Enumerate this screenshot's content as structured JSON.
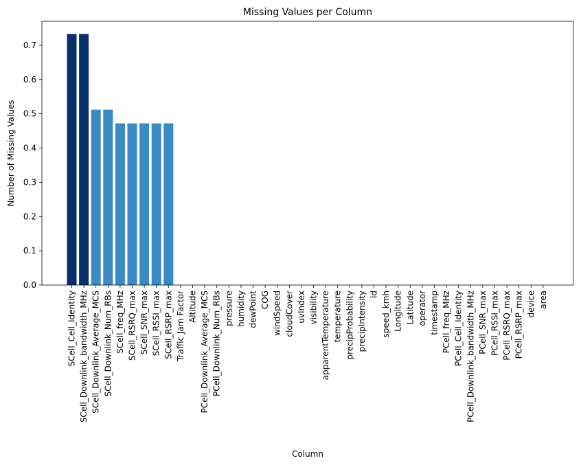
{
  "chart_data": {
    "type": "bar",
    "title": "Missing Values per Column",
    "xlabel": "Column",
    "ylabel": "Number of Missing Values",
    "ylim": [
      0,
      0.77
    ],
    "yticks": [
      0.0,
      0.1,
      0.2,
      0.3,
      0.4,
      0.5,
      0.6,
      0.7
    ],
    "ytick_labels": [
      "0.0",
      "0.1",
      "0.2",
      "0.3",
      "0.4",
      "0.5",
      "0.6",
      "0.7"
    ],
    "grid": false,
    "categories": [
      "SCell_Cell_Identity",
      "SCell_Downlink_bandwidth_MHz",
      "SCell_Downlink_Average_MCS",
      "SCell_Downlink_Num_RBs",
      "SCell_freq_MHz",
      "SCell_RSRQ_max",
      "SCell_SNR_max",
      "SCell_RSSI_max",
      "SCell_RSRP_max",
      "Traffic Jam Factor",
      "Altitude",
      "PCell_Downlink_Average_MCS",
      "PCell_Downlink_Num_RBs",
      "pressure",
      "humidity",
      "dewPoint",
      "COG",
      "windSpeed",
      "cloudCover",
      "uvIndex",
      "visibility",
      "apparentTemperature",
      "temperature",
      "precipProbability",
      "precipIntensity",
      "id",
      "speed_kmh",
      "Longitude",
      "Latitude",
      "operator",
      "timestamp",
      "PCell_freq_MHz",
      "PCell_Cell_Identity",
      "PCell_Downlink_bandwidth_MHz",
      "PCell_SNR_max",
      "PCell_RSSI_max",
      "PCell_RSRQ_max",
      "PCell_RSRP_max",
      "device",
      "area"
    ],
    "values": [
      0.733,
      0.733,
      0.512,
      0.512,
      0.472,
      0.472,
      0.472,
      0.472,
      0.472,
      0,
      0,
      0,
      0,
      0,
      0,
      0,
      0,
      0,
      0,
      0,
      0,
      0,
      0,
      0,
      0,
      0,
      0,
      0,
      0,
      0,
      0,
      0,
      0,
      0,
      0,
      0,
      0,
      0,
      0,
      0
    ],
    "colors": [
      "#08306b",
      "#08306b",
      "#3a8ac5",
      "#3a8ac5",
      "#3a8ac5",
      "#3a8ac5",
      "#3a8ac5",
      "#3a8ac5",
      "#3a8ac5",
      "#f7fbff",
      "#f7fbff",
      "#f7fbff",
      "#f7fbff",
      "#f7fbff",
      "#f7fbff",
      "#f7fbff",
      "#f7fbff",
      "#f7fbff",
      "#f7fbff",
      "#f7fbff",
      "#f7fbff",
      "#f7fbff",
      "#f7fbff",
      "#f7fbff",
      "#f7fbff",
      "#f7fbff",
      "#f7fbff",
      "#f7fbff",
      "#f7fbff",
      "#f7fbff",
      "#f7fbff",
      "#f7fbff",
      "#f7fbff",
      "#f7fbff",
      "#f7fbff",
      "#f7fbff",
      "#f7fbff",
      "#f7fbff",
      "#f7fbff",
      "#f7fbff"
    ]
  }
}
